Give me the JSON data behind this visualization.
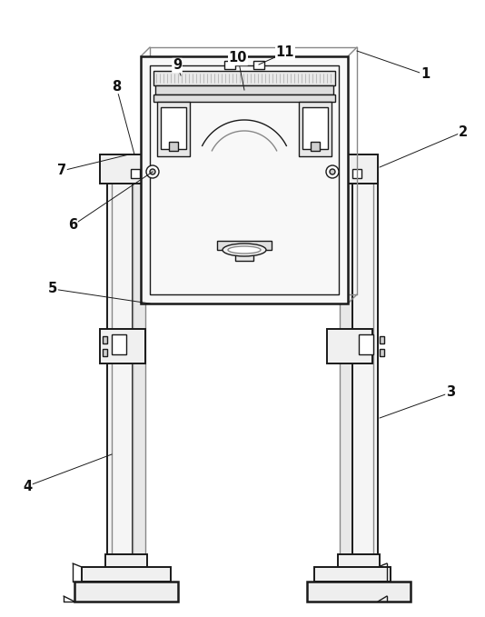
{
  "bg_color": "#ffffff",
  "line_color": "#1a1a1a",
  "gray_color": "#888888",
  "light_gray": "#bbbbbb",
  "figsize": [
    5.34,
    6.79
  ],
  "dpi": 100,
  "label_fontsize": 10.5
}
